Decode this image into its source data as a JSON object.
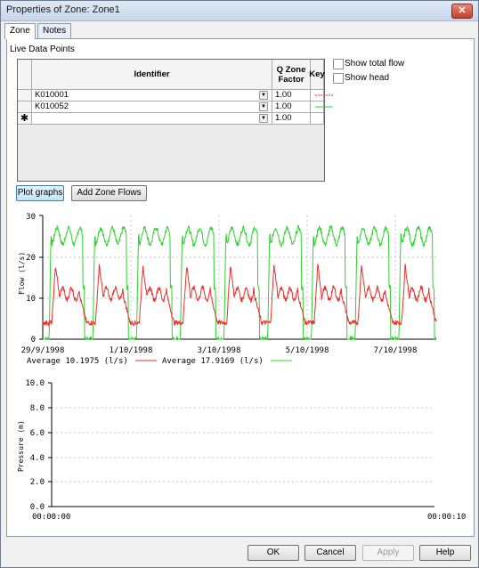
{
  "window": {
    "title": "Properties of Zone: Zone1",
    "close_label": "✕"
  },
  "tabs": [
    {
      "label": "Zone"
    },
    {
      "label": "Notes"
    }
  ],
  "live_data": {
    "label": "Live Data Points",
    "headers": {
      "identifier": "Identifier",
      "q_zone_factor": "Q Zone Factor",
      "key": "Key"
    },
    "rows": [
      {
        "identifier": "K010001",
        "factor": "1.00",
        "key_color": "#e8302c"
      },
      {
        "identifier": "K010052",
        "factor": "1.00",
        "key_color": "#2fd12f"
      },
      {
        "identifier": "",
        "factor": "1.00",
        "key_color": "",
        "new_row_marker": "✱"
      }
    ]
  },
  "options": {
    "show_total_flow": "Show total flow",
    "show_head": "Show head"
  },
  "buttons": {
    "plot_graphs": "Plot graphs",
    "add_zone_flows": "Add Zone Flows",
    "ok": "OK",
    "cancel": "Cancel",
    "apply": "Apply",
    "help": "Help"
  },
  "flow_chart": {
    "ylabel": "Flow (l/s)",
    "y_ticks": [
      "0",
      "10",
      "20",
      "30"
    ],
    "x_ticks": [
      "29/9/1998",
      "1/10/1998",
      "3/10/1998",
      "5/10/1998",
      "7/10/1998"
    ],
    "legend": [
      {
        "text": "Average 10.1975 (l/s)",
        "color": "#e8302c"
      },
      {
        "text": "Average 17.9169 (l/s)",
        "color": "#2fd12f"
      }
    ]
  },
  "pressure_chart": {
    "ylabel": "Pressure (m)",
    "y_ticks": [
      "0.0",
      "2.0",
      "4.0",
      "6.0",
      "8.0",
      "10.0"
    ],
    "x_ticks": [
      "00:00:00",
      "00:00:10"
    ]
  },
  "chart_data": [
    {
      "type": "line",
      "ylabel": "Flow (l/s)",
      "ylim": [
        0,
        30
      ],
      "x_range": [
        "29/9/1998",
        "8/10/1998"
      ],
      "series": [
        {
          "name": "K010001",
          "color": "#e8302c",
          "average": 10.1975,
          "daily_pattern": {
            "night_min": 4,
            "morning_peak": 18,
            "day_level": 11
          }
        },
        {
          "name": "K010052",
          "color": "#2fd12f",
          "average": 17.9169,
          "daily_pattern": {
            "night_min": 0,
            "day_level": 25
          }
        }
      ]
    },
    {
      "type": "line",
      "ylabel": "Pressure (m)",
      "ylim": [
        0,
        10
      ],
      "x_range": [
        "00:00:00",
        "00:00:10"
      ],
      "series": []
    }
  ]
}
